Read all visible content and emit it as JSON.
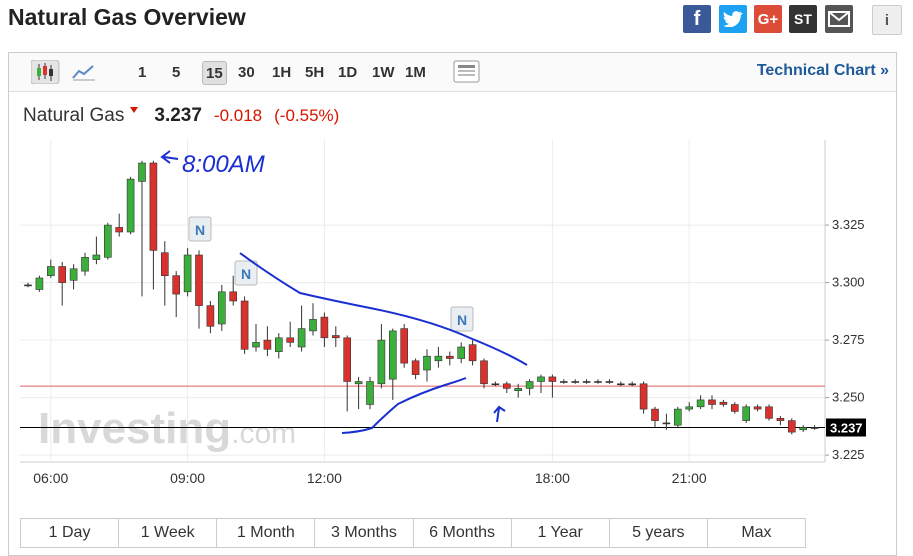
{
  "header": {
    "title": "Natural Gas Overview",
    "share": [
      "f",
      "G+",
      "ST",
      "i"
    ]
  },
  "toolbar": {
    "intervals": [
      "1",
      "5",
      "15",
      "30",
      "1H",
      "5H",
      "1D",
      "1W",
      "1M"
    ],
    "active": "15",
    "link": "Technical Chart »"
  },
  "quote": {
    "name": "Natural Gas",
    "last": "3.237",
    "change": "-0.018",
    "change_pct": "(-0.55%)"
  },
  "chart_data": {
    "type": "candlestick",
    "categories": [
      null,
      null,
      "06:00",
      null,
      null,
      null,
      null,
      null,
      null,
      null,
      null,
      null,
      null,
      null,
      "09:00",
      null,
      null,
      null,
      null,
      null,
      null,
      null,
      null,
      null,
      null,
      null,
      "12:00",
      null,
      null,
      null,
      null,
      null,
      null,
      null,
      null,
      null,
      null,
      null,
      null,
      null,
      null,
      null,
      null,
      null,
      null,
      null,
      "18:00",
      null,
      null,
      null,
      null,
      null,
      null,
      null,
      null,
      null,
      null,
      null,
      "21:00",
      null,
      null,
      null,
      null,
      null,
      null,
      null,
      null,
      null,
      null,
      null
    ],
    "open": [
      3.299,
      3.297,
      3.303,
      3.307,
      3.301,
      3.305,
      3.31,
      3.311,
      3.324,
      3.322,
      3.344,
      3.352,
      3.313,
      3.303,
      3.296,
      3.312,
      3.29,
      3.282,
      3.296,
      3.292,
      3.272,
      3.275,
      3.27,
      3.276,
      3.272,
      3.279,
      3.285,
      3.277,
      3.276,
      3.256,
      3.247,
      3.256,
      3.258,
      3.28,
      3.266,
      3.262,
      3.266,
      3.268,
      3.267,
      3.273,
      3.266,
      3.256,
      3.256,
      3.253,
      3.254,
      3.257,
      3.259,
      3.257,
      3.257,
      3.257,
      3.257,
      3.257,
      3.256,
      3.256,
      3.256,
      3.245,
      3.239,
      3.238,
      3.245,
      3.246,
      3.249,
      3.248,
      3.247,
      3.24,
      3.246,
      3.246,
      3.241,
      3.24,
      3.236,
      3.237
    ],
    "high": [
      3.3,
      3.303,
      3.31,
      3.309,
      3.308,
      3.313,
      3.32,
      3.326,
      3.33,
      3.346,
      3.353,
      3.353,
      3.318,
      3.305,
      3.315,
      3.314,
      3.292,
      3.299,
      3.303,
      3.294,
      3.282,
      3.281,
      3.278,
      3.283,
      3.29,
      3.291,
      3.287,
      3.281,
      3.277,
      3.259,
      3.259,
      3.282,
      3.28,
      3.282,
      3.267,
      3.271,
      3.272,
      3.27,
      3.274,
      3.275,
      3.267,
      3.257,
      3.257,
      3.256,
      3.258,
      3.26,
      3.26,
      3.258,
      3.258,
      3.258,
      3.258,
      3.258,
      3.257,
      3.257,
      3.257,
      3.246,
      3.243,
      3.246,
      3.248,
      3.251,
      3.251,
      3.249,
      3.248,
      3.247,
      3.247,
      3.247,
      3.242,
      3.241,
      3.238,
      3.238
    ],
    "low": [
      3.298,
      3.296,
      3.302,
      3.29,
      3.297,
      3.303,
      3.308,
      3.31,
      3.32,
      3.321,
      3.294,
      3.297,
      3.29,
      3.285,
      3.294,
      3.28,
      3.278,
      3.279,
      3.29,
      3.269,
      3.27,
      3.268,
      3.267,
      3.272,
      3.27,
      3.277,
      3.272,
      3.272,
      3.244,
      3.245,
      3.245,
      3.254,
      3.249,
      3.263,
      3.258,
      3.257,
      3.263,
      3.264,
      3.265,
      3.264,
      3.254,
      3.255,
      3.252,
      3.25,
      3.251,
      3.252,
      3.25,
      3.256,
      3.256,
      3.256,
      3.256,
      3.256,
      3.255,
      3.255,
      3.243,
      3.237,
      3.236,
      3.237,
      3.244,
      3.245,
      3.245,
      3.246,
      3.243,
      3.239,
      3.244,
      3.24,
      3.238,
      3.234,
      3.235,
      3.236
    ],
    "close": [
      3.299,
      3.302,
      3.307,
      3.3,
      3.306,
      3.311,
      3.312,
      3.325,
      3.322,
      3.345,
      3.352,
      3.314,
      3.303,
      3.295,
      3.312,
      3.29,
      3.281,
      3.296,
      3.292,
      3.271,
      3.274,
      3.271,
      3.276,
      3.274,
      3.28,
      3.284,
      3.276,
      3.276,
      3.257,
      3.257,
      3.257,
      3.275,
      3.279,
      3.265,
      3.26,
      3.268,
      3.268,
      3.267,
      3.272,
      3.266,
      3.256,
      3.256,
      3.254,
      3.254,
      3.257,
      3.259,
      3.257,
      3.257,
      3.257,
      3.257,
      3.257,
      3.257,
      3.256,
      3.256,
      3.245,
      3.24,
      3.239,
      3.245,
      3.246,
      3.249,
      3.247,
      3.247,
      3.244,
      3.246,
      3.245,
      3.241,
      3.24,
      3.235,
      3.237,
      3.237
    ],
    "up_color": "#3cae3c",
    "down_color": "#d9312c",
    "ylim": [
      3.222,
      3.362
    ],
    "yticks": [
      3.225,
      {
        "value": 3.25,
        "label": "3.250"
      },
      3.275,
      {
        "value": 3.3,
        "label": "3.300"
      },
      3.325
    ],
    "grid": true,
    "reference_line": {
      "value": 3.255,
      "color": "#e06060"
    },
    "last": {
      "value": 3.237,
      "label": "3.237"
    },
    "annotations": [
      "N",
      "N",
      "N",
      "8:00AM"
    ],
    "watermark": [
      "Investing",
      ".com"
    ]
  },
  "ranges": [
    "1 Day",
    "1 Week",
    "1 Month",
    "3 Months",
    "6 Months",
    "1 Year",
    "5 years",
    "Max"
  ]
}
